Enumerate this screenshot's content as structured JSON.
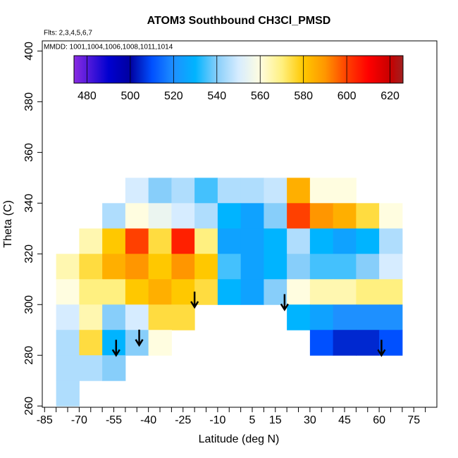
{
  "chart_data": {
    "type": "heatmap",
    "title": "ATOM3 Southbound CH3Cl_PMSD",
    "subtitles": [
      "Flts: 2,3,4,5,6,7",
      "MMDD: 1001,1004,1006,1008,1011,1014"
    ],
    "xlabel": "Latitude (deg N)",
    "ylabel": "Theta (C)",
    "xlim": [
      -86,
      85
    ],
    "ylim": [
      259.5,
      404
    ],
    "xticks": [
      -85,
      -70,
      -55,
      -40,
      -25,
      -10,
      5,
      15,
      30,
      45,
      60,
      75
    ],
    "xminorticks": [
      -80,
      -75,
      -65,
      -60,
      -50,
      -45,
      -35,
      -30,
      -20,
      -15,
      -5,
      0,
      10,
      20,
      25,
      35,
      40,
      50,
      55,
      65,
      70,
      80
    ],
    "yticks": [
      260,
      280,
      300,
      320,
      340,
      360,
      380,
      400
    ],
    "x": [
      -75,
      -65,
      -55,
      -45,
      -35,
      -25,
      -15,
      -5,
      5,
      15,
      25,
      35,
      45,
      55,
      65
    ],
    "y": [
      345,
      335,
      325,
      315,
      305,
      295,
      285,
      275,
      265
    ],
    "z": [
      [
        null,
        null,
        null,
        550,
        540,
        545,
        535,
        545,
        545,
        548,
        585,
        560,
        560,
        null,
        null
      ],
      [
        null,
        null,
        545,
        560,
        555,
        550,
        545,
        530,
        525,
        540,
        600,
        590,
        585,
        575,
        560
      ],
      [
        null,
        565,
        580,
        600,
        575,
        605,
        570,
        525,
        525,
        530,
        545,
        530,
        525,
        530,
        545
      ],
      [
        565,
        575,
        585,
        590,
        580,
        590,
        580,
        535,
        525,
        530,
        540,
        535,
        535,
        540,
        550
      ],
      [
        560,
        570,
        570,
        580,
        585,
        580,
        575,
        530,
        525,
        540,
        560,
        565,
        565,
        570,
        570
      ],
      [
        550,
        565,
        540,
        550,
        575,
        575,
        null,
        null,
        null,
        null,
        530,
        525,
        520,
        520,
        520
      ],
      [
        545,
        575,
        530,
        540,
        560,
        null,
        null,
        null,
        null,
        null,
        null,
        510,
        505,
        505,
        510
      ],
      [
        545,
        545,
        540,
        null,
        null,
        null,
        null,
        null,
        null,
        null,
        null,
        null,
        null,
        null,
        null
      ],
      [
        545,
        null,
        null,
        null,
        null,
        null,
        null,
        null,
        null,
        null,
        null,
        null,
        null,
        null,
        null
      ]
    ],
    "zlim": [
      474,
      626
    ],
    "zticks": [
      480,
      500,
      520,
      540,
      560,
      580,
      600,
      620
    ],
    "colormap": [
      {
        "value": 474,
        "color": "#8a2be2"
      },
      {
        "value": 490,
        "color": "#0000d0"
      },
      {
        "value": 500,
        "color": "#0000a0"
      },
      {
        "value": 510,
        "color": "#0050ff"
      },
      {
        "value": 520,
        "color": "#1e90ff"
      },
      {
        "value": 530,
        "color": "#00b4ff"
      },
      {
        "value": 540,
        "color": "#87cefa"
      },
      {
        "value": 550,
        "color": "#d6ecff"
      },
      {
        "value": 560,
        "color": "#fffde0"
      },
      {
        "value": 570,
        "color": "#fff080"
      },
      {
        "value": 580,
        "color": "#ffc800"
      },
      {
        "value": 590,
        "color": "#ff9600"
      },
      {
        "value": 600,
        "color": "#ff4000"
      },
      {
        "value": 610,
        "color": "#ff0000"
      },
      {
        "value": 620,
        "color": "#c80000"
      },
      {
        "value": 626,
        "color": "#a02020"
      }
    ],
    "arrows": {
      "x": [
        -54,
        -44,
        -20,
        19,
        61
      ],
      "y": [
        280,
        284,
        299,
        298,
        280
      ]
    }
  }
}
